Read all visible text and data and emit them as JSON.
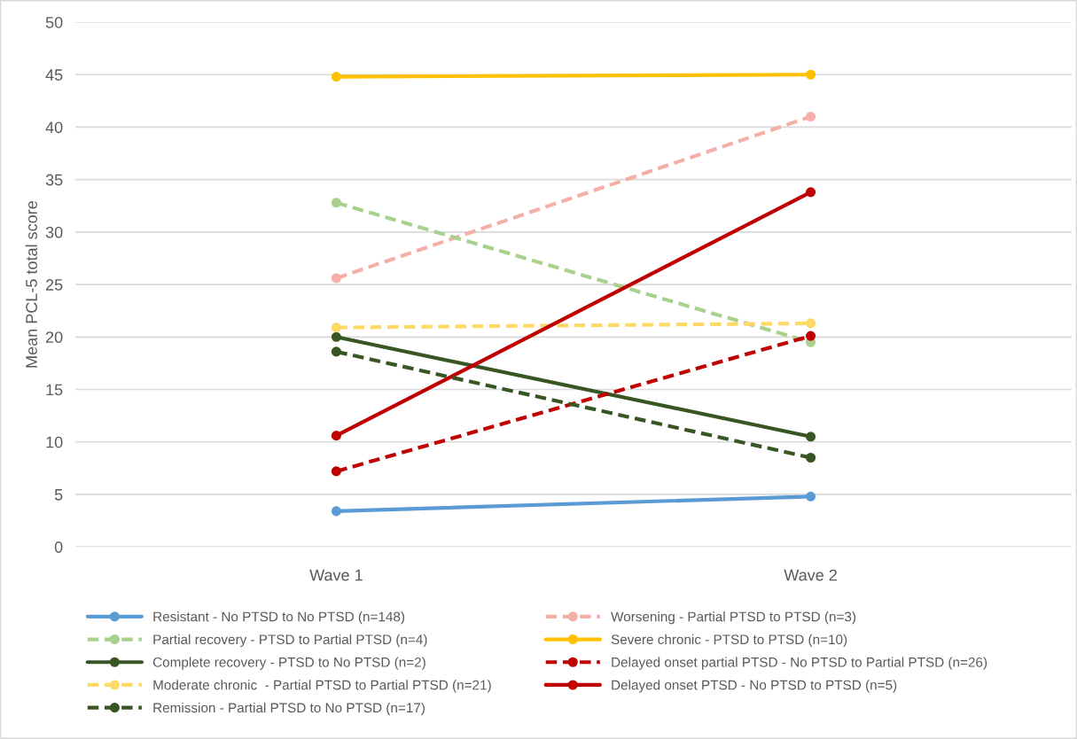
{
  "chart_data": {
    "type": "line",
    "ylabel": "Mean PCL-5 total score",
    "categories": [
      "Wave 1",
      "Wave 2"
    ],
    "ylim": [
      0,
      50
    ],
    "yticks": [
      0,
      5,
      10,
      15,
      20,
      25,
      30,
      35,
      40,
      45,
      50
    ],
    "grid": "y",
    "legend": "bottom",
    "marker": "circle",
    "series": [
      {
        "name": "Resistant - No PTSD to No PTSD (n=148)",
        "color": "#5b9bd5",
        "line_style": "solid",
        "values": [
          3.4,
          4.8
        ]
      },
      {
        "name": "Worsening - Partial PTSD to PTSD (n=3)",
        "color": "#f4b0a8",
        "line_style": "dashed",
        "values": [
          25.6,
          41.0
        ]
      },
      {
        "name": "Partial recovery - PTSD to Partial PTSD (n=4)",
        "color": "#a9d18e",
        "line_style": "dashed",
        "values": [
          32.8,
          19.5
        ]
      },
      {
        "name": "Severe chronic - PTSD to PTSD (n=10)",
        "color": "#ffc000",
        "line_style": "solid",
        "values": [
          44.8,
          45.0
        ]
      },
      {
        "name": "Complete recovery - PTSD to No PTSD (n=2)",
        "color": "#375623",
        "line_style": "solid",
        "values": [
          20.0,
          10.5
        ]
      },
      {
        "name": "Delayed onset partial PTSD - No PTSD to Partial PTSD (n=26)",
        "color": "#c00000",
        "line_style": "dashed",
        "values": [
          7.2,
          20.1
        ]
      },
      {
        "name": "Moderate chronic  - Partial PTSD to Partial PTSD (n=21)",
        "color": "#ffd966",
        "line_style": "dashed",
        "values": [
          20.9,
          21.3
        ]
      },
      {
        "name": "Delayed onset PTSD - No PTSD to PTSD (n=5)",
        "color": "#c00000",
        "line_style": "solid",
        "values": [
          10.6,
          33.8
        ]
      },
      {
        "name": "Remission - Partial PTSD to No PTSD (n=17)",
        "color": "#375623",
        "line_style": "dashed",
        "values": [
          18.6,
          8.5
        ]
      }
    ]
  }
}
